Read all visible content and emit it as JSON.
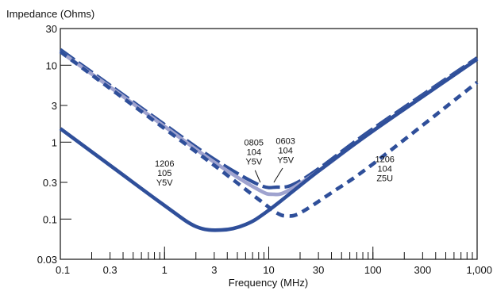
{
  "chart_data": {
    "type": "line",
    "title": "",
    "ylabel": "Impedance (Ohms)",
    "xlabel": "Frequency (MHz)",
    "x_scale": "log",
    "y_scale": "log",
    "xlim": [
      0.1,
      1000
    ],
    "ylim": [
      0.03,
      30
    ],
    "x_ticks": [
      {
        "value": 0.1,
        "label": "0.1"
      },
      {
        "value": 0.3,
        "label": "0.3"
      },
      {
        "value": 1,
        "label": "1"
      },
      {
        "value": 3,
        "label": "3"
      },
      {
        "value": 10,
        "label": "10"
      },
      {
        "value": 30,
        "label": "30"
      },
      {
        "value": 100,
        "label": "100"
      },
      {
        "value": 300,
        "label": "300"
      },
      {
        "value": 1000,
        "label": "1,000"
      }
    ],
    "y_ticks": [
      {
        "value": 0.03,
        "label": "0.03"
      },
      {
        "value": 0.1,
        "label": "0.1"
      },
      {
        "value": 0.3,
        "label": "0.3"
      },
      {
        "value": 1,
        "label": "1"
      },
      {
        "value": 3,
        "label": "3"
      },
      {
        "value": 10,
        "label": "10"
      },
      {
        "value": 30,
        "label": "30"
      }
    ],
    "grid": false,
    "series": [
      {
        "label": "1206 105 Y5V",
        "style": "solid-thick",
        "color": "#2f4f9a",
        "points": [
          [
            0.1,
            1.5
          ],
          [
            0.3,
            0.5
          ],
          [
            1,
            0.15
          ],
          [
            2,
            0.08
          ],
          [
            3.5,
            0.072
          ],
          [
            6,
            0.085
          ],
          [
            10,
            0.13
          ],
          [
            30,
            0.42
          ],
          [
            100,
            1.4
          ],
          [
            1000,
            12
          ]
        ]
      },
      {
        "label": "0805 104 Y5V",
        "style": "solid-light",
        "color": "#9fa3cf",
        "points": [
          [
            0.1,
            15
          ],
          [
            0.3,
            5.2
          ],
          [
            1,
            1.6
          ],
          [
            3,
            0.55
          ],
          [
            8,
            0.24
          ],
          [
            11,
            0.21
          ],
          [
            15,
            0.23
          ],
          [
            30,
            0.42
          ],
          [
            100,
            1.4
          ],
          [
            1000,
            12
          ]
        ]
      },
      {
        "label": "0603 104 Y5V",
        "style": "long-dash",
        "color": "#2f4f9a",
        "points": [
          [
            0.1,
            16
          ],
          [
            0.3,
            5.5
          ],
          [
            1,
            1.7
          ],
          [
            3,
            0.6
          ],
          [
            8,
            0.28
          ],
          [
            12,
            0.26
          ],
          [
            17,
            0.28
          ],
          [
            30,
            0.45
          ],
          [
            100,
            1.5
          ],
          [
            1000,
            12.5
          ]
        ]
      },
      {
        "label": "1206 104 Z5U",
        "style": "short-dash",
        "color": "#2f4f9a",
        "points": [
          [
            0.1,
            15
          ],
          [
            0.3,
            5
          ],
          [
            1,
            1.5
          ],
          [
            3,
            0.5
          ],
          [
            8,
            0.18
          ],
          [
            12,
            0.12
          ],
          [
            15,
            0.11
          ],
          [
            20,
            0.12
          ],
          [
            40,
            0.22
          ],
          [
            100,
            0.52
          ],
          [
            1000,
            6
          ]
        ]
      }
    ],
    "annotations": [
      {
        "lines": [
          "1206",
          "105",
          "Y5V"
        ],
        "x": 1.0,
        "y": 0.48
      },
      {
        "lines": [
          "0805",
          "104",
          "Y5V"
        ],
        "x": 7.2,
        "y": 0.9
      },
      {
        "lines": [
          "0603",
          "104",
          "Y5V"
        ],
        "x": 14.5,
        "y": 0.95
      },
      {
        "lines": [
          "1206",
          "104",
          "Z5U"
        ],
        "x": 130,
        "y": 0.55
      }
    ]
  }
}
